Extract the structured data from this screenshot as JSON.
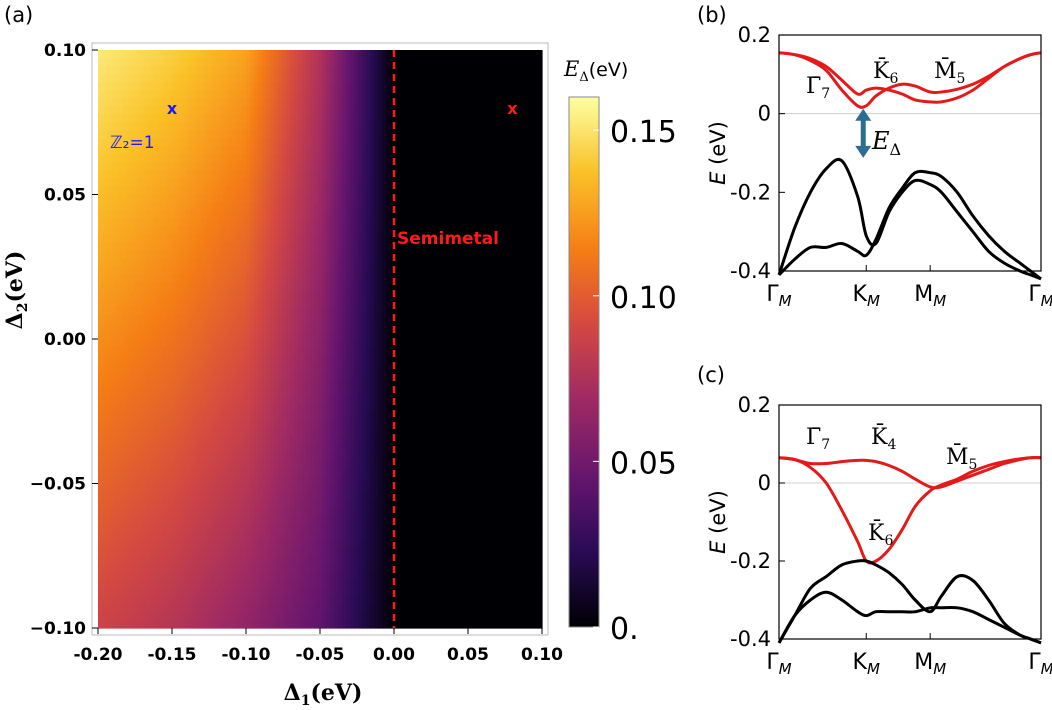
{
  "panel_labels": {
    "a": "(a)",
    "b": "(b)",
    "c": "(c)"
  },
  "chart_data": [
    {
      "type": "heatmap",
      "panel": "(a)",
      "xlabel": "Δ₁(eV)",
      "ylabel": "Δ₂(eV)",
      "xlim": [
        -0.2,
        0.1
      ],
      "ylim": [
        -0.1,
        0.1
      ],
      "x_ticks": [
        {
          "value": -0.2,
          "label": "-0.20"
        },
        {
          "value": -0.15,
          "label": "-0.15"
        },
        {
          "value": -0.1,
          "label": "-0.10"
        },
        {
          "value": -0.05,
          "label": "-0.05"
        },
        {
          "value": 0.0,
          "label": "0.00"
        },
        {
          "value": 0.05,
          "label": "0.05"
        },
        {
          "value": 0.1,
          "label": "0.10"
        }
      ],
      "y_ticks": [
        {
          "value": 0.1,
          "label": "0.10"
        },
        {
          "value": 0.05,
          "label": "0.05"
        },
        {
          "value": 0.0,
          "label": "0.00"
        },
        {
          "value": -0.05,
          "label": "−0.05"
        },
        {
          "value": -0.1,
          "label": "−0.10"
        }
      ],
      "colorbar": {
        "label": "E_Δ(eV)",
        "label_main": "E",
        "label_sub": "Δ",
        "label_unit": "(eV)",
        "range": [
          0,
          0.16
        ],
        "ticks": [
          {
            "value": 0.15,
            "label": "0.15"
          },
          {
            "value": 0.1,
            "label": "0.10"
          },
          {
            "value": 0.05,
            "label": "0.05"
          },
          {
            "value": 0.0,
            "label": "0."
          }
        ],
        "colormap": [
          "#000004",
          "#280b54",
          "#65156e",
          "#9f2a63",
          "#d44842",
          "#f57d15",
          "#fac228",
          "#fcffa4"
        ]
      },
      "gap_profile": {
        "description_values": "E_Δ at Δ2=0 along Δ1",
        "x": [
          -0.2,
          -0.15,
          -0.1,
          -0.05,
          -0.025,
          0.0,
          0.1
        ],
        "y": [
          0.12,
          0.11,
          0.095,
          0.06,
          0.03,
          0.0,
          0.0
        ]
      },
      "boundary": {
        "x": 0.0,
        "label": "Semimetal",
        "color": "#ff1a1a"
      },
      "markers": [
        {
          "x": -0.15,
          "y": 0.08,
          "symbol": "x",
          "color": "#1a1aff",
          "label": "ℤ₂=1"
        },
        {
          "x": 0.08,
          "y": 0.08,
          "symbol": "x",
          "color": "#ff1a1a",
          "label": ""
        }
      ]
    },
    {
      "type": "line",
      "panel": "(b)",
      "ylabel": "E (eV)",
      "ylim": [
        -0.4,
        0.2
      ],
      "y_ticks": [
        {
          "value": 0.2,
          "label": "0.2"
        },
        {
          "value": 0.0,
          "label": "0"
        },
        {
          "value": -0.2,
          "label": "-0.2"
        },
        {
          "value": -0.4,
          "label": "-0.4"
        }
      ],
      "x_ticks": [
        {
          "main": "Γ",
          "sub": "M",
          "pos": 0.0
        },
        {
          "main": "K",
          "sub": "M",
          "pos": 0.333
        },
        {
          "main": "M",
          "sub": "M",
          "pos": 0.577
        },
        {
          "main": "Γ",
          "sub": "M",
          "pos": 1.0
        }
      ],
      "x": [
        0.0,
        0.06,
        0.12,
        0.18,
        0.24,
        0.3,
        0.333,
        0.37,
        0.42,
        0.47,
        0.52,
        0.577,
        0.62,
        0.68,
        0.74,
        0.8,
        0.86,
        0.92,
        0.96,
        1.0
      ],
      "series": [
        {
          "color": "#e41a1a",
          "values": [
            0.155,
            0.15,
            0.135,
            0.11,
            0.06,
            0.02,
            0.02,
            0.045,
            0.065,
            0.075,
            0.07,
            0.055,
            0.055,
            0.062,
            0.075,
            0.095,
            0.12,
            0.14,
            0.15,
            0.155
          ]
        },
        {
          "color": "#e41a1a",
          "values": [
            0.155,
            0.15,
            0.14,
            0.12,
            0.085,
            0.05,
            0.06,
            0.065,
            0.06,
            0.05,
            0.035,
            0.03,
            0.03,
            0.04,
            0.06,
            0.09,
            0.12,
            0.14,
            0.15,
            0.155
          ]
        },
        {
          "color": "#000000",
          "values": [
            -0.41,
            -0.29,
            -0.2,
            -0.14,
            -0.12,
            -0.21,
            -0.31,
            -0.33,
            -0.25,
            -0.2,
            -0.17,
            -0.18,
            -0.2,
            -0.25,
            -0.3,
            -0.35,
            -0.38,
            -0.4,
            -0.41,
            -0.42
          ]
        },
        {
          "color": "#000000",
          "values": [
            -0.41,
            -0.37,
            -0.34,
            -0.34,
            -0.33,
            -0.35,
            -0.36,
            -0.32,
            -0.24,
            -0.19,
            -0.15,
            -0.15,
            -0.16,
            -0.2,
            -0.26,
            -0.31,
            -0.35,
            -0.38,
            -0.4,
            -0.42
          ]
        }
      ],
      "annotations": [
        {
          "text": "Γ̄",
          "sub": "7"
        },
        {
          "text": "K̄",
          "sub": "6"
        },
        {
          "text": "M̄",
          "sub": "5"
        },
        {
          "text": "E",
          "sub": "Δ"
        }
      ],
      "gap_arrow": {
        "from": 0.02,
        "to": -0.12,
        "at_x": 0.333,
        "color": "#2b6e8f"
      }
    },
    {
      "type": "line",
      "panel": "(c)",
      "ylabel": "E (eV)",
      "ylim": [
        -0.4,
        0.2
      ],
      "y_ticks": [
        {
          "value": 0.2,
          "label": "0.2"
        },
        {
          "value": 0.0,
          "label": "0"
        },
        {
          "value": -0.2,
          "label": "-0.2"
        },
        {
          "value": -0.4,
          "label": "-0.4"
        }
      ],
      "x_ticks": [
        {
          "main": "Γ",
          "sub": "M",
          "pos": 0.0
        },
        {
          "main": "K",
          "sub": "M",
          "pos": 0.333
        },
        {
          "main": "M",
          "sub": "M",
          "pos": 0.577
        },
        {
          "main": "Γ",
          "sub": "M",
          "pos": 1.0
        }
      ],
      "x": [
        0.0,
        0.06,
        0.12,
        0.18,
        0.24,
        0.3,
        0.333,
        0.37,
        0.42,
        0.47,
        0.52,
        0.577,
        0.62,
        0.68,
        0.74,
        0.8,
        0.86,
        0.92,
        0.96,
        1.0
      ],
      "series": [
        {
          "color": "#e41a1a",
          "values": [
            0.065,
            0.06,
            0.05,
            0.05,
            0.055,
            0.058,
            0.058,
            0.055,
            0.045,
            0.03,
            0.01,
            -0.01,
            -0.01,
            0.005,
            0.02,
            0.035,
            0.05,
            0.06,
            0.065,
            0.065
          ]
        },
        {
          "color": "#e41a1a",
          "values": [
            0.065,
            0.06,
            0.04,
            0.0,
            -0.07,
            -0.15,
            -0.2,
            -0.2,
            -0.17,
            -0.12,
            -0.06,
            -0.02,
            -0.005,
            0.01,
            0.03,
            0.045,
            0.055,
            0.062,
            0.065,
            0.065
          ]
        },
        {
          "color": "#000000",
          "values": [
            -0.41,
            -0.34,
            -0.27,
            -0.24,
            -0.21,
            -0.2,
            -0.2,
            -0.21,
            -0.23,
            -0.26,
            -0.3,
            -0.33,
            -0.29,
            -0.24,
            -0.25,
            -0.3,
            -0.36,
            -0.39,
            -0.4,
            -0.41
          ]
        },
        {
          "color": "#000000",
          "values": [
            -0.41,
            -0.34,
            -0.3,
            -0.28,
            -0.3,
            -0.33,
            -0.34,
            -0.33,
            -0.33,
            -0.33,
            -0.33,
            -0.32,
            -0.32,
            -0.32,
            -0.33,
            -0.35,
            -0.37,
            -0.39,
            -0.4,
            -0.41
          ]
        }
      ],
      "annotations": [
        {
          "text": "Γ̄",
          "sub": "7"
        },
        {
          "text": "K̄",
          "sub": "4"
        },
        {
          "text": "M̄",
          "sub": "5"
        },
        {
          "text": "K̄",
          "sub": "6"
        }
      ]
    }
  ]
}
